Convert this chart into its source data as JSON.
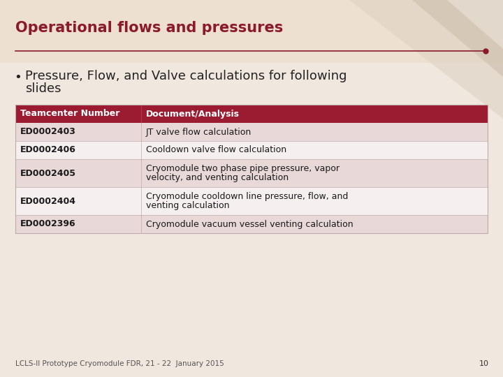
{
  "title": "Operational flows and pressures",
  "title_color": "#8B1A2B",
  "bullet_text_line1": "Pressure, Flow, and Valve calculations for following",
  "bullet_text_line2": "slides",
  "bullet_color": "#222222",
  "bg_color": "#F0E8DF",
  "header_bg": "#9B1B30",
  "header_fg": "#FFFFFF",
  "row_colors": [
    "#E8D8D8",
    "#F5EFEF",
    "#E8D8D8",
    "#F5EFEF",
    "#E8D8D8"
  ],
  "table_headers": [
    "Teamcenter Number",
    "Document/Analysis"
  ],
  "table_rows": [
    [
      "ED0002403",
      "JT valve flow calculation"
    ],
    [
      "ED0002406",
      "Cooldown valve flow calculation"
    ],
    [
      "ED0002405",
      "Cryomodule two phase pipe pressure, vapor\nvelocity, and venting calculation"
    ],
    [
      "ED0002404",
      "Cryomodule cooldown line pressure, flow, and\nventing calculation"
    ],
    [
      "ED0002396",
      "Cryomodule vacuum vessel venting calculation"
    ]
  ],
  "footer_text": "LCLS-II Prototype Cryomodule FDR, 21 - 22  January 2015",
  "footer_number": "10",
  "separator_color": "#8B1A2B",
  "top_bg_color": "#EDE0D0",
  "corner_color1": "#D4C4B0",
  "corner_color2": "#C8B8A0"
}
